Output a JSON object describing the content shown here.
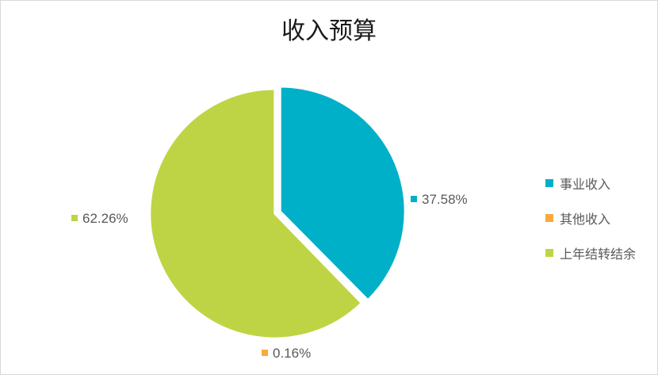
{
  "chart_data": {
    "type": "pie",
    "title": "收入预算",
    "categories": [
      "事业收入",
      "其他收入",
      "上年结转结余"
    ],
    "values": [
      37.58,
      0.16,
      62.26
    ],
    "labels": [
      "37.58%",
      "0.16%",
      "62.26%"
    ],
    "colors": [
      "#00b0c8",
      "#f9a93c",
      "#bfd444"
    ],
    "legend_position": "right"
  }
}
